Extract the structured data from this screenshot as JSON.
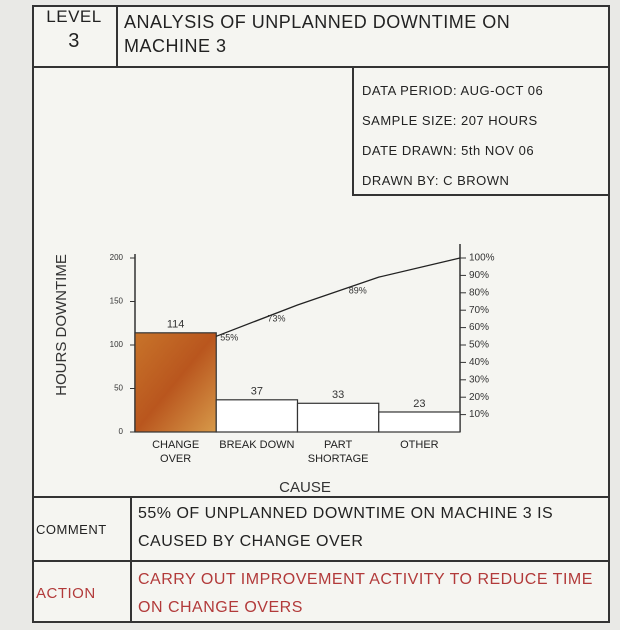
{
  "level_label": "LEVEL",
  "level": "3",
  "title": "ANALYSIS OF UNPLANNED DOWNTIME ON MACHINE 3",
  "info": [
    "DATA PERIOD: AUG-OCT 06",
    "SAMPLE SIZE: 207 HOURS",
    "DATE DRAWN: 5th NOV 06",
    "DRAWN BY: C BROWN"
  ],
  "chart_data": {
    "type": "bar",
    "x_label": "CAUSE",
    "y_label": "HOURS DOWNTIME",
    "categories": [
      "CHANGE OVER",
      "BREAK DOWN",
      "PART SHORTAGE",
      "OTHER"
    ],
    "values": [
      114,
      37,
      33,
      23
    ],
    "colors": [
      "#c8742a",
      "#ffffff",
      "#ffffff",
      "#ffffff"
    ],
    "ylim": [
      0,
      200
    ],
    "yticks": [
      0,
      50,
      100,
      150,
      200
    ],
    "y2lim": [
      0,
      100
    ],
    "y2ticks": [
      {
        "value": 10,
        "label": "10%"
      },
      {
        "value": 20,
        "label": "20%"
      },
      {
        "value": 30,
        "label": "30%"
      },
      {
        "value": 40,
        "label": "40%"
      },
      {
        "value": 50,
        "label": "50%"
      },
      {
        "value": 60,
        "label": "60%"
      },
      {
        "value": 70,
        "label": "70%"
      },
      {
        "value": 80,
        "label": "80%"
      },
      {
        "value": 90,
        "label": "90%"
      },
      {
        "value": 100,
        "label": "100%"
      }
    ],
    "cumulative": {
      "axis": "y2",
      "color": "#222222",
      "values": [
        55,
        73,
        89,
        100
      ],
      "value_labels": [
        "55%",
        "73%",
        "89%",
        null
      ]
    }
  },
  "comment_label": "COMMENT",
  "comment": "55% OF UNPLANNED DOWNTIME ON MACHINE 3 IS CAUSED BY CHANGE OVER",
  "action_label": "ACTION",
  "action": "CARRY OUT IMPROVEMENT ACTIVITY TO REDUCE TIME ON CHANGE OVERS"
}
